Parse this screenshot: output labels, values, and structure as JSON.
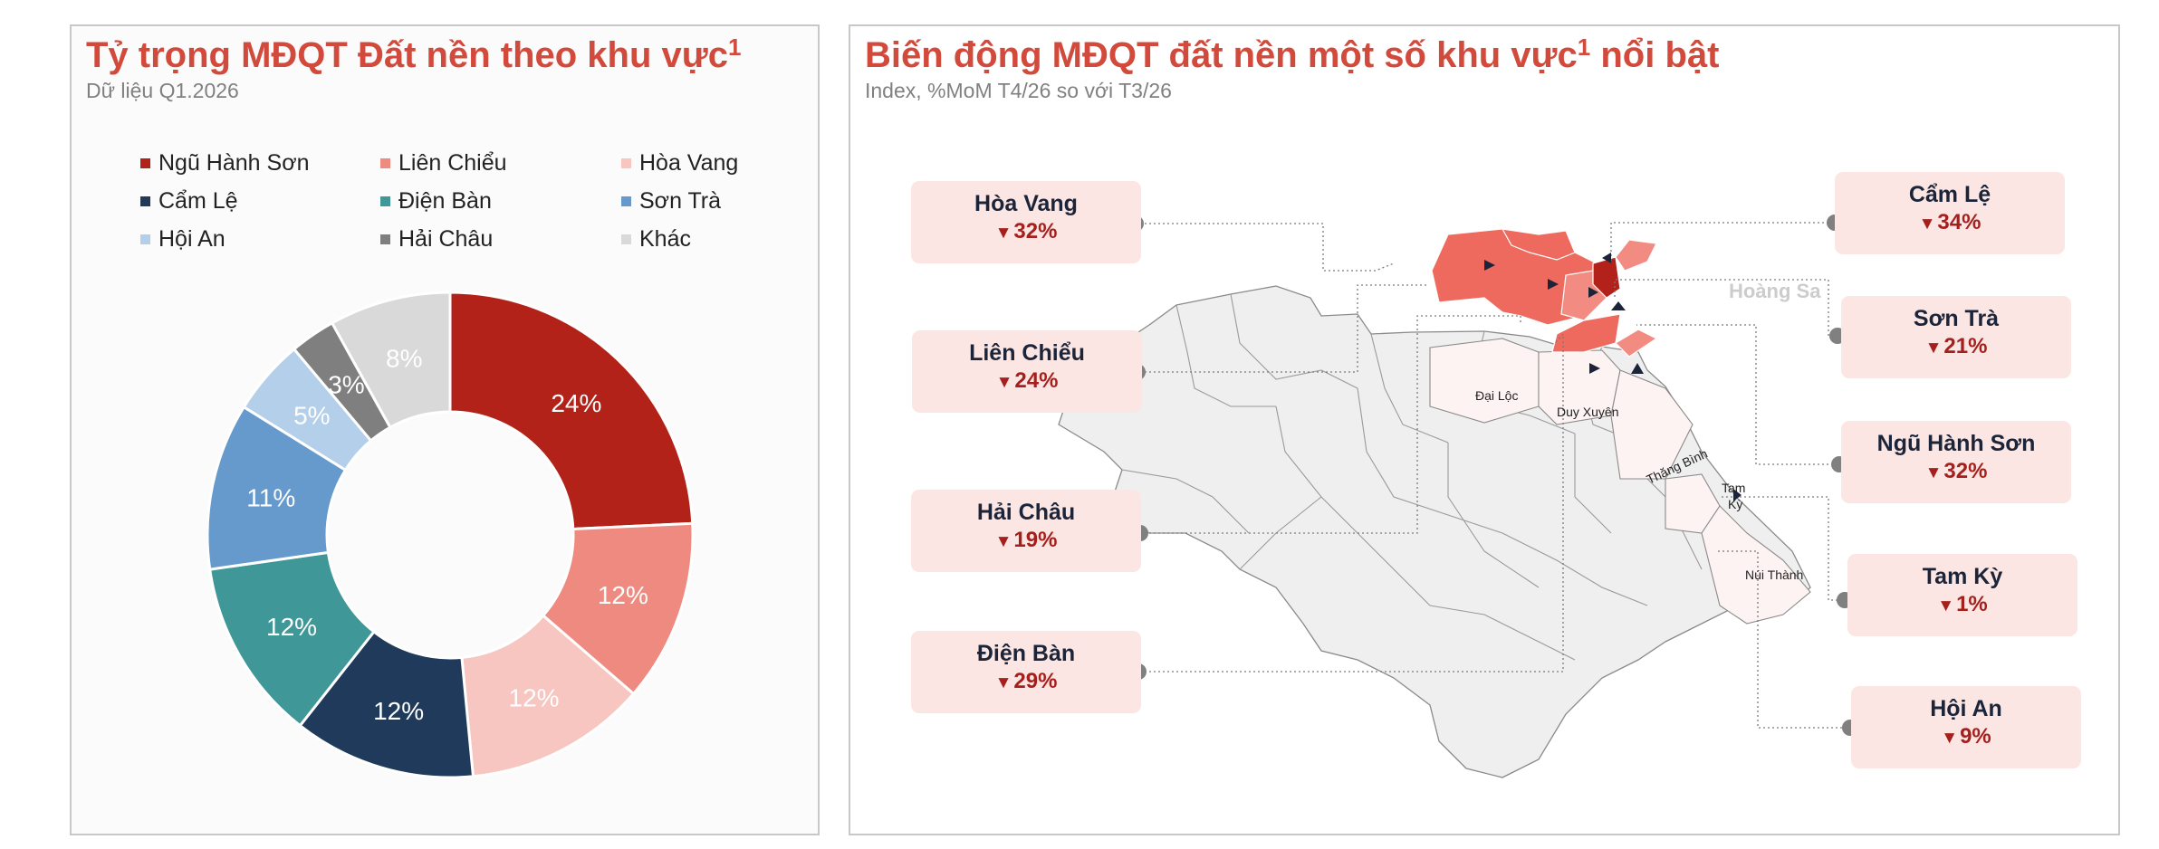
{
  "left": {
    "title": "Tỷ trọng MĐQT Đất nền theo khu vực",
    "title_sup": "1",
    "subtitle": "Dữ liệu Q1.2026"
  },
  "right": {
    "title": "Biến động MĐQT đất nền một số khu vực",
    "title_sup": "1",
    "title_tail": " nổi bật",
    "subtitle": "Index, %MoM T4/26 so với T3/26"
  },
  "chart_data": [
    {
      "type": "pie",
      "donut": true,
      "categories": [
        "Ngũ Hành Sơn",
        "Liên Chiểu",
        "Hòa Vang",
        "Cẩm Lệ",
        "Điện Bàn",
        "Sơn Trà",
        "Hội An",
        "Hải Châu",
        "Khác"
      ],
      "values": [
        24,
        12,
        12,
        12,
        12,
        11,
        5,
        3,
        8
      ],
      "labels": [
        "24%",
        "12%",
        "12%",
        "12%",
        "12%",
        "11%",
        "5%",
        "3%",
        "8%"
      ],
      "colors": [
        "#b32218",
        "#ef8a80",
        "#f7c6c1",
        "#1f3a5a",
        "#3f9797",
        "#6699cc",
        "#b3cfe9",
        "#7f7f7f",
        "#d9d9d9"
      ],
      "legend_position": "top"
    },
    {
      "type": "table",
      "columns": [
        "Khu vực",
        "%MoM"
      ],
      "rows": [
        [
          "Hòa Vang",
          "32%"
        ],
        [
          "Liên Chiểu",
          "24%"
        ],
        [
          "Hải Châu",
          "19%"
        ],
        [
          "Điện Bàn",
          "29%"
        ],
        [
          "Cẩm Lệ",
          "34%"
        ],
        [
          "Sơn Trà",
          "21%"
        ],
        [
          "Ngũ Hành Sơn",
          "32%"
        ],
        [
          "Tam Kỳ",
          "1%"
        ],
        [
          "Hội An",
          "9%"
        ]
      ],
      "direction": "down"
    }
  ],
  "map": {
    "place_labels": [
      "Hoàng Sa",
      "Đại Lộc",
      "Duy Xuyên",
      "Thăng Bình",
      "Tam",
      "Kỳ",
      "Núi Thành"
    ]
  },
  "callouts": {
    "hoa_vang": {
      "name": "Hòa Vang",
      "value": "32%"
    },
    "lien_chieu": {
      "name": "Liên Chiểu",
      "value": "24%"
    },
    "hai_chau": {
      "name": "Hải Châu",
      "value": "19%"
    },
    "dien_ban": {
      "name": "Điện Bàn",
      "value": "29%"
    },
    "cam_le": {
      "name": "Cẩm Lệ",
      "value": "34%"
    },
    "son_tra": {
      "name": "Sơn Trà",
      "value": "21%"
    },
    "ngu_hanh_son": {
      "name": "Ngũ Hành Sơn",
      "value": "32%"
    },
    "tam_ky": {
      "name": "Tam Kỳ",
      "value": "1%"
    },
    "hoi_an": {
      "name": "Hội An",
      "value": "9%"
    }
  },
  "colors": {
    "title": "#d24a3c",
    "callout_bg": "#fbe6e3",
    "decrease": "#a51f1c",
    "map_high": "#ee6a5e",
    "map_mid": "#f28c82",
    "map_dark": "#b3221a",
    "map_light": "#fdf3f2",
    "map_base": "#efefef"
  },
  "icons": {
    "decrease": "down-triangle-icon",
    "map_marker": "play-triangle-icon"
  }
}
